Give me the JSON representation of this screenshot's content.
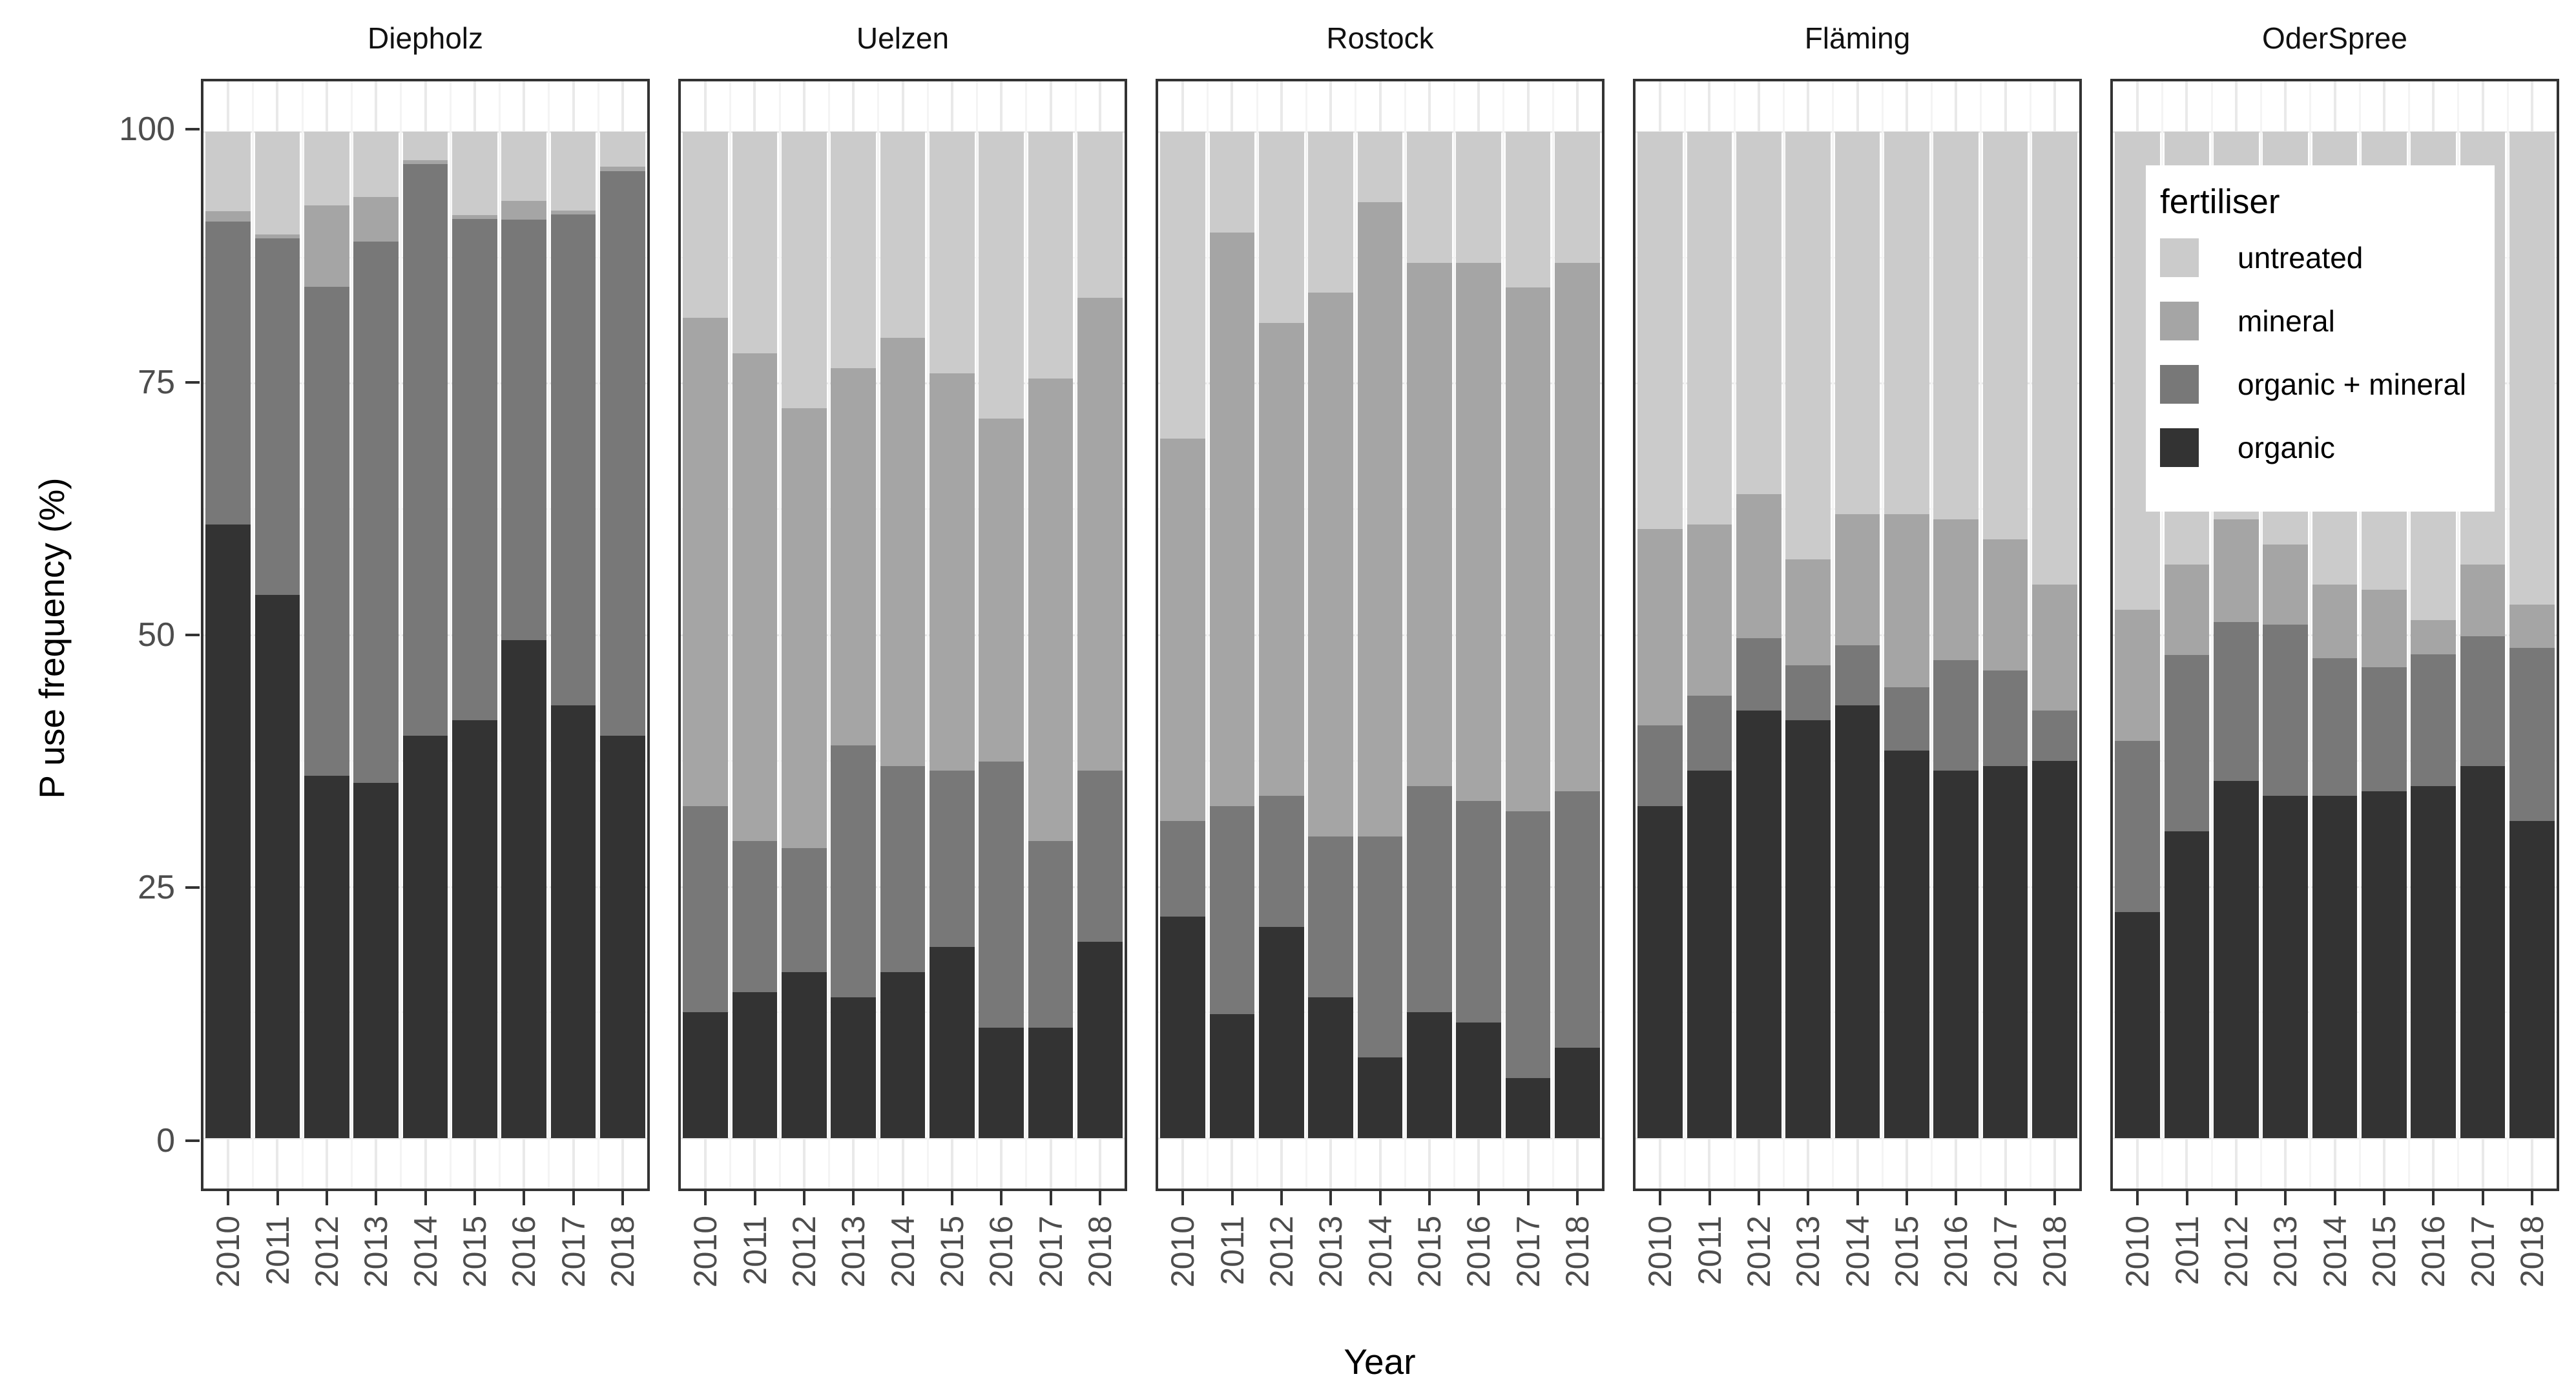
{
  "chart_data": {
    "type": "bar",
    "stacked": true,
    "units": "percent of 100 per bar",
    "xlabel": "Year",
    "ylabel": "P use frequency (%)",
    "ylim": [
      0,
      100
    ],
    "yticks": [
      0,
      25,
      50,
      75,
      100
    ],
    "grid": "on",
    "categories": [
      "2010",
      "2011",
      "2012",
      "2013",
      "2014",
      "2015",
      "2016",
      "2017",
      "2018"
    ],
    "stack_order_bottom_to_top": [
      "organic",
      "organic + mineral",
      "mineral",
      "untreated"
    ],
    "legend": {
      "title": "fertiliser",
      "position": "inside top-right (over OderSpree panel)",
      "entries": [
        {
          "label": "untreated",
          "color": "#cbcbcb"
        },
        {
          "label": "mineral",
          "color": "#a5a5a5"
        },
        {
          "label": "organic + mineral",
          "color": "#787878"
        },
        {
          "label": "organic",
          "color": "#333333"
        }
      ]
    },
    "facets": [
      {
        "name": "Diepholz",
        "series": [
          {
            "name": "organic",
            "values": [
              61,
              54,
              36,
              35.3,
              40,
              41.5,
              49.5,
              43,
              40
            ]
          },
          {
            "name": "organic + mineral",
            "values": [
              30.1,
              35.4,
              48.6,
              53.8,
              56.8,
              49.8,
              41.8,
              48.8,
              56.1
            ]
          },
          {
            "name": "mineral",
            "values": [
              1,
              0.4,
              8.1,
              4.4,
              0.4,
              0.4,
              1.8,
              0.4,
              0.4
            ]
          },
          {
            "name": "untreated",
            "values": [
              7.9,
              10.2,
              7.3,
              6.5,
              2.8,
              8.3,
              6.9,
              7.8,
              3.5
            ]
          }
        ]
      },
      {
        "name": "Uelzen",
        "series": [
          {
            "name": "organic",
            "values": [
              12.5,
              14.5,
              16.5,
              14,
              16.5,
              19,
              11,
              11,
              19.5
            ]
          },
          {
            "name": "organic + mineral",
            "values": [
              20.5,
              15,
              12.3,
              25,
              20.5,
              17.5,
              26.4,
              18.5,
              17
            ]
          },
          {
            "name": "mineral",
            "values": [
              48.5,
              48.5,
              43.7,
              37.5,
              42.5,
              39.5,
              34.1,
              46,
              47
            ]
          },
          {
            "name": "untreated",
            "values": [
              18.5,
              22,
              27.5,
              23.5,
              20.5,
              24,
              28.5,
              24.5,
              16.5
            ]
          }
        ]
      },
      {
        "name": "Rostock",
        "series": [
          {
            "name": "organic",
            "values": [
              22,
              12.3,
              21,
              14,
              8,
              12.5,
              11.5,
              6,
              9
            ]
          },
          {
            "name": "organic + mineral",
            "values": [
              9.5,
              20.7,
              13,
              16,
              22,
              22.5,
              22,
              26.5,
              25.5
            ]
          },
          {
            "name": "mineral",
            "values": [
              38,
              57,
              47,
              54,
              63,
              52,
              53.5,
              52,
              52.5
            ]
          },
          {
            "name": "untreated",
            "values": [
              30.5,
              10,
              19,
              16,
              7,
              13,
              13,
              15.5,
              13
            ]
          }
        ]
      },
      {
        "name": "Fläming",
        "series": [
          {
            "name": "organic",
            "values": [
              33,
              36.5,
              42.5,
              41.5,
              43,
              38.5,
              36.5,
              37,
              37.5
            ]
          },
          {
            "name": "organic + mineral",
            "values": [
              8,
              7.5,
              7.2,
              5.5,
              6,
              6.3,
              11,
              9.5,
              5
            ]
          },
          {
            "name": "mineral",
            "values": [
              19.5,
              17,
              14.3,
              10.5,
              13,
              17.2,
              14,
              13,
              12.5
            ]
          },
          {
            "name": "untreated",
            "values": [
              39.5,
              39,
              36,
              42.5,
              38,
              38,
              38.5,
              40.5,
              45
            ]
          }
        ]
      },
      {
        "name": "OderSpree",
        "series": [
          {
            "name": "organic",
            "values": [
              22.5,
              30.5,
              35.5,
              34,
              34,
              34.5,
              35,
              37,
              31.5
            ]
          },
          {
            "name": "organic + mineral",
            "values": [
              17,
              17.5,
              15.8,
              17,
              13.7,
              12.3,
              13.1,
              12.9,
              17.2
            ]
          },
          {
            "name": "mineral",
            "values": [
              13,
              9,
              10.2,
              8,
              7.3,
              7.7,
              3.4,
              7.1,
              4.3
            ]
          },
          {
            "name": "untreated",
            "values": [
              47.5,
              43,
              38.5,
              41,
              45,
              45.5,
              48.5,
              43,
              47
            ]
          }
        ]
      }
    ]
  },
  "style": {
    "panel_border_color": "#333333",
    "axis_text_color": "#4d4d4d",
    "title_text_color": "#000000",
    "grid_major_color": "#e9e9e9",
    "grid_minor_color": "#f3f3f3"
  }
}
